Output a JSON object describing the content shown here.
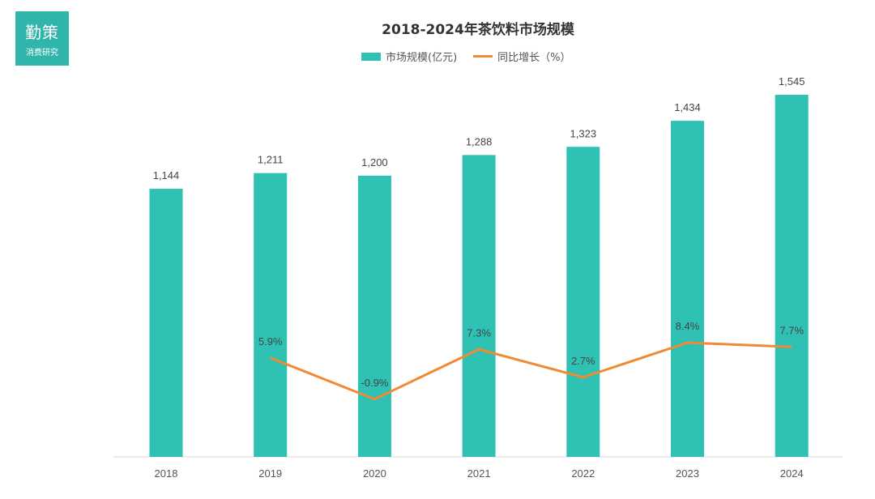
{
  "logo": {
    "line1": "勤策",
    "line2": "消费研究"
  },
  "colors": {
    "bar": "#2fc1b4",
    "line": "#f08a34",
    "logo": "#2fb5aa"
  },
  "chart_data": {
    "type": "bar+line",
    "title": "2018-2024年茶饮料市场规模",
    "categories": [
      "2018",
      "2019",
      "2020",
      "2021",
      "2022",
      "2023",
      "2024"
    ],
    "legend_position": "top",
    "grid": false,
    "series": [
      {
        "name": "市场规模(亿元)",
        "type": "bar",
        "values": [
          1144,
          1211,
          1200,
          1288,
          1323,
          1434,
          1545
        ],
        "labels": [
          "1,144",
          "1,211",
          "1,200",
          "1,288",
          "1,323",
          "1,434",
          "1,545"
        ]
      },
      {
        "name": "同比增长（%）",
        "type": "line",
        "values": [
          null,
          5.9,
          -0.9,
          7.3,
          2.7,
          8.4,
          7.7
        ],
        "labels": [
          "",
          "5.9%",
          "-0.9%",
          "7.3%",
          "2.7%",
          "8.4%",
          "7.7%"
        ]
      }
    ]
  }
}
